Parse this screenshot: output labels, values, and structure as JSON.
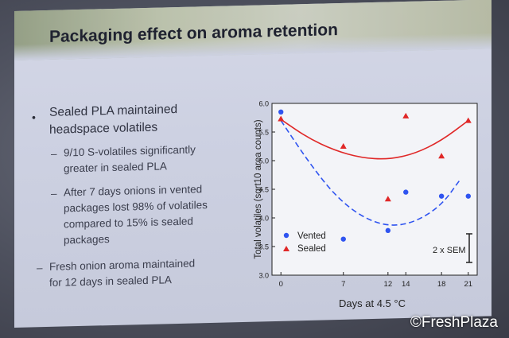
{
  "slide": {
    "title": "Packaging effect on aroma retention",
    "bullet_main": [
      "Sealed PLA maintained",
      "headspace volatiles"
    ],
    "sub_bullets": [
      [
        "9/10 S-volatiles significantly",
        "greater in sealed PLA"
      ],
      [
        "After 7 days onions in vented",
        "packages lost 98% of volatiles",
        "compared to 15% is sealed",
        "packages"
      ],
      [
        "Fresh onion aroma maintained",
        "for 12 days in sealed PLA"
      ]
    ],
    "dash": "–",
    "bullet_symbol": "•"
  },
  "chart_data": {
    "type": "scatter",
    "ylabel": "Total volatiles (sqrt10 area counts)",
    "xlabel": "Days at 4.5 °C",
    "xlim": [
      -1,
      22
    ],
    "ylim": [
      3.0,
      6.0
    ],
    "x_ticks": [
      0,
      7,
      12,
      14,
      18,
      21
    ],
    "y_ticks": [
      3.0,
      3.5,
      4.0,
      4.5,
      5.0,
      5.5,
      6.0
    ],
    "series": [
      {
        "name": "Vented",
        "marker": "circle",
        "color": "#2f54f0",
        "points": [
          [
            0,
            5.85
          ],
          [
            7,
            3.63
          ],
          [
            12,
            3.78
          ],
          [
            14,
            4.45
          ],
          [
            18,
            4.38
          ],
          [
            21,
            4.38
          ]
        ],
        "fit_curve": [
          [
            0,
            5.7
          ],
          [
            3,
            5.0
          ],
          [
            6,
            4.4
          ],
          [
            9,
            4.02
          ],
          [
            12,
            3.85
          ],
          [
            15,
            3.92
          ],
          [
            18,
            4.22
          ],
          [
            20,
            4.65
          ]
        ]
      },
      {
        "name": "Sealed",
        "marker": "triangle",
        "color": "#e02828",
        "points": [
          [
            0,
            5.73
          ],
          [
            7,
            5.25
          ],
          [
            12,
            4.33
          ],
          [
            14,
            5.78
          ],
          [
            18,
            5.08
          ],
          [
            21,
            5.7
          ]
        ],
        "fit_curve": [
          [
            0,
            5.72
          ],
          [
            3,
            5.4
          ],
          [
            6,
            5.18
          ],
          [
            9,
            5.05
          ],
          [
            12,
            5.02
          ],
          [
            15,
            5.12
          ],
          [
            18,
            5.35
          ],
          [
            21,
            5.7
          ]
        ]
      }
    ],
    "annotation": "2 x SEM",
    "legend_position": "bottom-left"
  },
  "watermark": "©FreshPlaza"
}
